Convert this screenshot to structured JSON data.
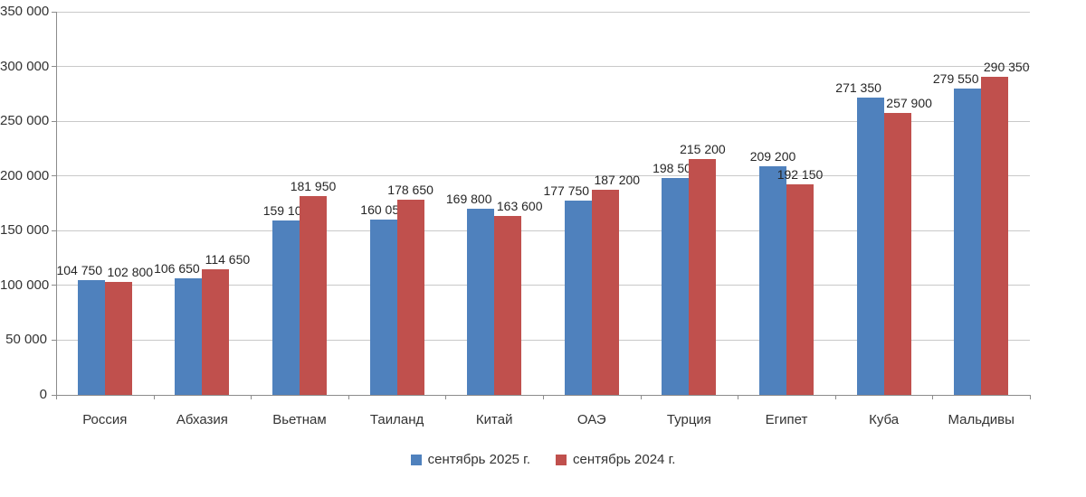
{
  "chart_data": {
    "type": "bar",
    "title": "",
    "xlabel": "",
    "ylabel": "",
    "categories": [
      "Россия",
      "Абхазия",
      "Вьетнам",
      "Таиланд",
      "Китай",
      "ОАЭ",
      "Турция",
      "Египет",
      "Куба",
      "Мальдивы"
    ],
    "series": [
      {
        "name": "сентябрь 2025 г.",
        "color": "#4f81bd",
        "values": [
          104750,
          106650,
          159100,
          160050,
          169800,
          177750,
          198500,
          209200,
          271350,
          279550
        ]
      },
      {
        "name": "сентябрь 2024 г.",
        "color": "#c0504d",
        "values": [
          102800,
          114650,
          181950,
          178650,
          163600,
          187200,
          215200,
          192150,
          257900,
          290350
        ]
      }
    ],
    "ylim": [
      0,
      350000
    ],
    "yticks": [
      0,
      50000,
      100000,
      150000,
      200000,
      250000,
      300000,
      350000
    ],
    "grid": "horizontal",
    "legend_position": "bottom",
    "data_labels": true,
    "number_format": "space-thousands"
  },
  "colors": {
    "grid": "#c9c9c9",
    "axis": "#8c8c8c",
    "text": "#333333",
    "background": "#ffffff"
  }
}
